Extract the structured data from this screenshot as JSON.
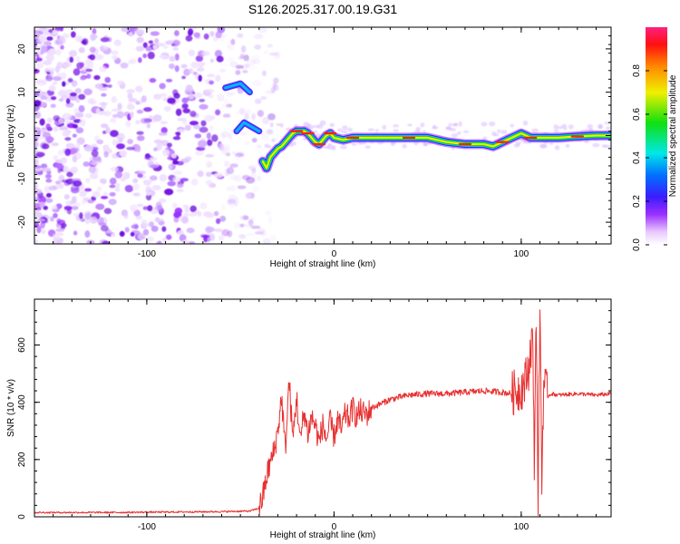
{
  "figure_title": "S126.2025.317.00.19.G31",
  "colors": {
    "signal": "#ff2020",
    "snr_line": "#e83030",
    "speckle": "#9b30ff",
    "frame": "#000000"
  },
  "chart_data": [
    {
      "type": "heatmap",
      "title": "S126.2025.317.00.19.G31",
      "xlabel": "Height of straight line (km)",
      "ylabel": "Frequency (Hz)",
      "xlim": [
        -160,
        148
      ],
      "ylim": [
        -25,
        25
      ],
      "xticks": [
        -100,
        0,
        100
      ],
      "xtick_labels": [
        "-100",
        "0",
        "100"
      ],
      "yticks": [
        -20,
        -10,
        0,
        10,
        20
      ],
      "ytick_labels": [
        "-20",
        "-10",
        "0",
        "10",
        "20"
      ],
      "colorbar": {
        "label": "Normalized spectral amplitude",
        "range": [
          0,
          1
        ],
        "ticks": [
          0.0,
          0.2,
          0.4,
          0.6,
          0.8
        ],
        "tick_labels": [
          "0.0",
          "0.2",
          "0.4",
          "0.6",
          "0.8"
        ],
        "colormap": "rainbow (purple to red)"
      },
      "signal_trace": {
        "x": [
          -38,
          -36,
          -34,
          -32,
          -30,
          -28,
          -26,
          -24,
          -22,
          -20,
          -18,
          -16,
          -14,
          -12,
          -10,
          -8,
          -6,
          -4,
          -2,
          0,
          5,
          10,
          20,
          30,
          40,
          50,
          60,
          70,
          80,
          85,
          90,
          95,
          100,
          105,
          110,
          120,
          130,
          140,
          148
        ],
        "freq": [
          -6,
          -7.5,
          -5,
          -4,
          -3,
          -2.5,
          -1.5,
          -0.5,
          0.5,
          1,
          1,
          1,
          0.5,
          -0.5,
          -1.5,
          -2,
          -1,
          0,
          0.5,
          -0.5,
          -1,
          -0.5,
          -0.5,
          -0.5,
          -0.5,
          -0.5,
          -1.5,
          -2,
          -2,
          -2.5,
          -1.5,
          -0.5,
          0.5,
          -0.5,
          -0.5,
          -0.5,
          -0.2,
          0,
          0
        ]
      },
      "side_lobes": [
        {
          "x": [
            -58,
            -50,
            -45
          ],
          "freq": [
            11,
            12,
            10
          ]
        },
        {
          "x": [
            -52,
            -48,
            -44,
            -40
          ],
          "freq": [
            1,
            3,
            2,
            1
          ]
        }
      ]
    },
    {
      "type": "line",
      "title": "",
      "xlabel": "Height of straight line (km)",
      "ylabel": "SNR (10 * v/v)",
      "xlim": [
        -160,
        148
      ],
      "ylim": [
        0,
        760
      ],
      "xticks": [
        -100,
        0,
        100
      ],
      "xtick_labels": [
        "-100",
        "0",
        "100"
      ],
      "yticks": [
        0,
        200,
        400,
        600
      ],
      "ytick_labels": [
        "0",
        "200",
        "400",
        "600"
      ],
      "series": [
        {
          "name": "SNR",
          "x": [
            -160,
            -140,
            -120,
            -100,
            -80,
            -60,
            -45,
            -40,
            -38,
            -36,
            -34,
            -32,
            -30,
            -28,
            -26,
            -24,
            -22,
            -20,
            -18,
            -16,
            -14,
            -12,
            -10,
            -8,
            -6,
            -4,
            -2,
            0,
            2,
            4,
            6,
            8,
            10,
            12,
            14,
            16,
            18,
            20,
            25,
            30,
            40,
            50,
            60,
            70,
            80,
            90,
            95,
            100,
            102,
            104,
            106,
            107,
            108,
            109,
            110,
            111,
            112,
            114,
            116,
            120,
            130,
            140,
            148
          ],
          "y": [
            15,
            15,
            15,
            16,
            17,
            18,
            20,
            30,
            70,
            140,
            190,
            230,
            300,
            420,
            230,
            480,
            270,
            420,
            260,
            370,
            290,
            350,
            320,
            260,
            320,
            270,
            330,
            280,
            340,
            300,
            360,
            340,
            380,
            350,
            370,
            360,
            360,
            380,
            395,
            410,
            425,
            430,
            430,
            435,
            440,
            435,
            430,
            450,
            470,
            520,
            640,
            200,
            740,
            60,
            760,
            120,
            470,
            420,
            430,
            425,
            430,
            425,
            430
          ]
        }
      ]
    }
  ]
}
